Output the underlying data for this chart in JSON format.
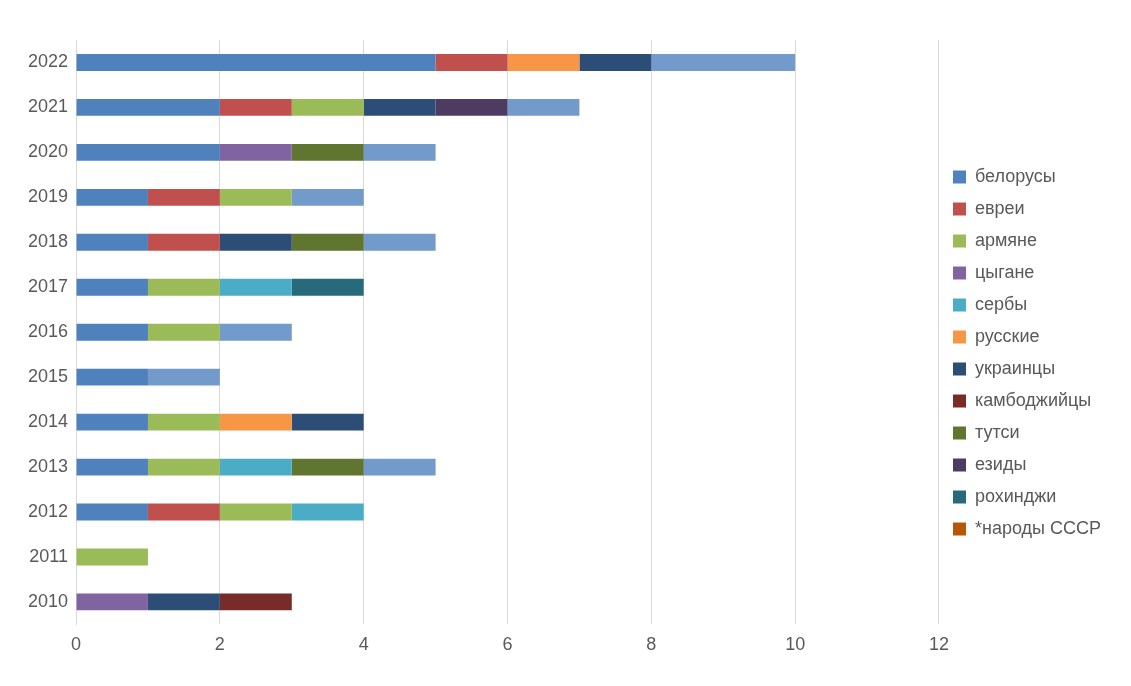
{
  "chart_data": {
    "type": "bar",
    "orientation": "horizontal",
    "stacked": true,
    "categories": [
      "2022",
      "2021",
      "2020",
      "2019",
      "2018",
      "2017",
      "2016",
      "2015",
      "2014",
      "2013",
      "2012",
      "2011",
      "2010"
    ],
    "series": [
      {
        "name": "белорусы",
        "color": "#4f81bd",
        "values": [
          5,
          2,
          2,
          1,
          1,
          1,
          1,
          1,
          1,
          1,
          1,
          null,
          null
        ]
      },
      {
        "name": "евреи",
        "color": "#c0504d",
        "values": [
          1,
          1,
          null,
          1,
          1,
          null,
          null,
          null,
          null,
          null,
          1,
          null,
          null
        ]
      },
      {
        "name": "армяне",
        "color": "#9bbb59",
        "values": [
          null,
          1,
          null,
          1,
          null,
          1,
          1,
          null,
          1,
          1,
          1,
          1,
          null
        ]
      },
      {
        "name": "цыгане",
        "color": "#8064a2",
        "values": [
          null,
          null,
          1,
          null,
          null,
          null,
          null,
          null,
          null,
          null,
          null,
          null,
          1
        ]
      },
      {
        "name": "сербы",
        "color": "#4bacc6",
        "values": [
          null,
          null,
          null,
          null,
          null,
          1,
          null,
          null,
          null,
          1,
          1,
          null,
          null
        ]
      },
      {
        "name": "русские",
        "color": "#f79646",
        "values": [
          1,
          null,
          null,
          null,
          null,
          null,
          null,
          null,
          1,
          null,
          null,
          null,
          null
        ]
      },
      {
        "name": "украинцы",
        "color": "#2c4d75",
        "values": [
          1,
          1,
          null,
          null,
          1,
          null,
          null,
          null,
          1,
          null,
          null,
          null,
          1
        ]
      },
      {
        "name": "камбоджийцы",
        "color": "#772c2a",
        "values": [
          null,
          null,
          null,
          null,
          null,
          null,
          null,
          null,
          null,
          null,
          null,
          null,
          1
        ]
      },
      {
        "name": "тутси",
        "color": "#5f7530",
        "values": [
          null,
          null,
          1,
          null,
          1,
          null,
          null,
          null,
          null,
          1,
          null,
          null,
          null
        ]
      },
      {
        "name": "езиды",
        "color": "#4d3b62",
        "values": [
          null,
          1,
          null,
          null,
          null,
          null,
          null,
          null,
          null,
          null,
          null,
          null,
          null
        ]
      },
      {
        "name": "рохинджи",
        "color": "#276a7c",
        "values": [
          null,
          null,
          null,
          null,
          null,
          1,
          null,
          null,
          null,
          null,
          null,
          null,
          null
        ]
      },
      {
        "name": "*народы СССР",
        "color": "#b65708",
        "values": [
          null,
          null,
          null,
          null,
          null,
          null,
          null,
          null,
          null,
          null,
          null,
          null,
          null
        ]
      },
      {
        "color": "#729aca",
        "values": [
          2,
          1,
          1,
          1,
          1,
          null,
          1,
          1,
          null,
          1,
          null,
          null,
          null
        ]
      }
    ],
    "xlim": [
      0,
      12
    ],
    "xticks": [
      0,
      2,
      4,
      6,
      8,
      10,
      12
    ],
    "grid": "x",
    "legend": "right"
  }
}
